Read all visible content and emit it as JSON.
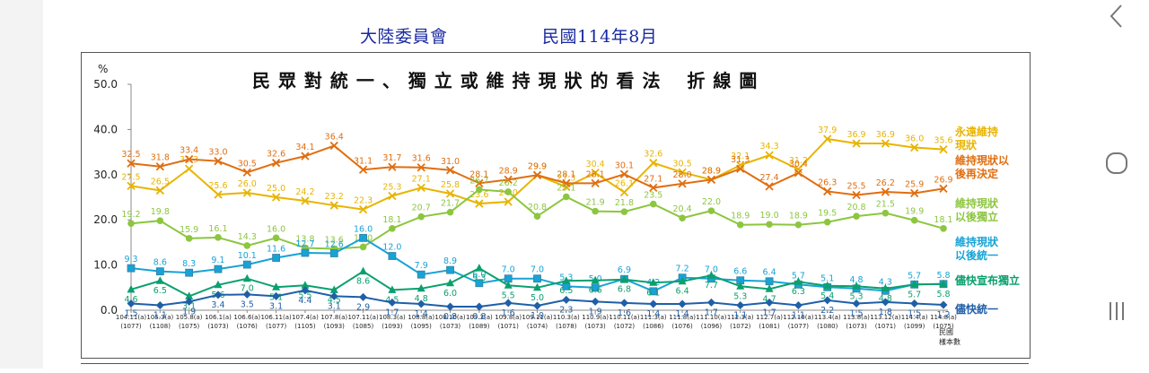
{
  "header": {
    "org_title": "大陸委員會",
    "date_title": "民國114年8月"
  },
  "nav": {
    "back_icon": "chevron-left-icon",
    "home_icon": "circle-home-icon",
    "recents_icon": "recents-icon"
  },
  "chart_data": {
    "type": "line",
    "title": "民 眾 對 統 一 、 獨 立 或 維 持 現 狀 的 看 法　 折 線 圖",
    "ylabel": "%",
    "ylim": [
      0,
      50
    ],
    "yticks": [
      "0.0",
      "10.0",
      "20.0",
      "30.0",
      "40.0",
      "50.0"
    ],
    "xlabel": "民國",
    "sample_label": "樣本數",
    "categories": [
      "104.11(a)",
      "105.3(a)",
      "105.8(a)",
      "106.1(a)",
      "106.6(a)",
      "106.11(a)",
      "107.4(a)",
      "107.8(a)",
      "107.11(a)",
      "108.3(a)",
      "108.8(a)",
      "108.10(a)",
      "109.3(a)",
      "109.8(a)",
      "109.11(a)",
      "110.3(a)",
      "110.9(a)",
      "110.11(a)",
      "111.3(a)",
      "111.8(a)",
      "111.10(a)",
      "112.3(a)",
      "112.7(a)",
      "112.10(a)",
      "113.4(a)",
      "113.8(a)",
      "113.12(a)",
      "114.4(a)",
      "114.8(a)"
    ],
    "samples": [
      "(1077)",
      "(1108)",
      "(1075)",
      "(1073)",
      "(1076)",
      "(1077)",
      "(1105)",
      "(1093)",
      "(1085)",
      "(1093)",
      "(1095)",
      "(1073)",
      "(1089)",
      "(1071)",
      "(1074)",
      "(1078)",
      "(1073)",
      "(1072)",
      "(1086)",
      "(1076)",
      "(1096)",
      "(1072)",
      "(1081)",
      "(1077)",
      "(1080)",
      "(1073)",
      "(1071)",
      "(1099)",
      "(1075)"
    ],
    "series": [
      {
        "name": "永遠維持現狀",
        "color": "#e8b400",
        "marker": "x",
        "label_pos": "above",
        "values": [
          27.5,
          26.5,
          31.3,
          25.6,
          26.0,
          25.0,
          24.2,
          23.2,
          22.3,
          25.3,
          27.1,
          25.8,
          23.6,
          24.0,
          29.9,
          27.3,
          30.4,
          26.1,
          32.6,
          30.5,
          28.9,
          32.1,
          34.3,
          31.2,
          37.9,
          36.9,
          36.9,
          36.0,
          35.6
        ]
      },
      {
        "name": "維持現狀以後再決定",
        "color": "#e06e10",
        "marker": "x",
        "label_pos": "above",
        "values": [
          32.5,
          31.8,
          33.4,
          33.0,
          30.5,
          32.6,
          34.1,
          36.4,
          31.1,
          31.7,
          31.6,
          31.0,
          28.1,
          28.9,
          29.9,
          28.1,
          28.1,
          30.1,
          27.1,
          28.0,
          28.9,
          31.3,
          27.4,
          30.4,
          26.3,
          25.5,
          26.2,
          25.9,
          26.9
        ]
      },
      {
        "name": "維持現狀以後獨立",
        "color": "#8cc63f",
        "marker": "circle",
        "label_pos": "above",
        "values": [
          19.2,
          19.8,
          15.9,
          16.1,
          14.3,
          16.0,
          13.8,
          13.6,
          14.0,
          18.1,
          20.7,
          21.7,
          26.7,
          26.2,
          20.8,
          25.1,
          21.9,
          21.8,
          23.5,
          20.4,
          22.0,
          18.9,
          19.0,
          18.9,
          19.5,
          20.8,
          21.5,
          19.9,
          18.1
        ]
      },
      {
        "name": "維持現狀以後統一",
        "color": "#17a3d6",
        "marker": "square",
        "label_pos": "above",
        "values": [
          9.3,
          8.6,
          8.3,
          9.1,
          10.1,
          11.6,
          12.7,
          12.6,
          16.0,
          12.0,
          7.9,
          8.9,
          6.0,
          7.0,
          7.0,
          5.3,
          5.0,
          6.9,
          4.2,
          7.2,
          7.0,
          6.6,
          6.4,
          5.7,
          5.1,
          4.8,
          4.3,
          5.7,
          5.8
        ]
      },
      {
        "name": "儘快宣布獨立",
        "color": "#0aa06e",
        "marker": "triangle",
        "label_pos": "below",
        "values": [
          4.6,
          6.5,
          3.1,
          5.6,
          7.0,
          5.1,
          5.5,
          4.5,
          8.6,
          4.5,
          4.8,
          6.0,
          9.3,
          5.5,
          5.0,
          6.5,
          6.6,
          6.8,
          6.1,
          6.4,
          7.7,
          5.3,
          4.7,
          6.3,
          5.4,
          5.3,
          4.8,
          5.7,
          5.8
        ]
      },
      {
        "name": "儘快統一",
        "color": "#1f5fa8",
        "marker": "diamond",
        "label_pos": "below",
        "values": [
          1.5,
          1.1,
          1.9,
          3.4,
          3.5,
          3.1,
          4.4,
          3.1,
          2.9,
          1.7,
          1.4,
          0.8,
          0.8,
          1.6,
          1.0,
          2.3,
          1.9,
          1.6,
          1.4,
          1.4,
          1.7,
          1.1,
          1.7,
          1.1,
          2.2,
          1.5,
          1.8,
          1.5,
          1.2
        ]
      }
    ],
    "legend": [
      {
        "lines": [
          "永遠維持",
          "現狀"
        ],
        "color": "#e8b400"
      },
      {
        "lines": [
          "維持現狀以",
          "後再決定"
        ],
        "color": "#e06e10"
      },
      {
        "lines": [
          "維持現狀",
          "以後獨立"
        ],
        "color": "#8cc63f"
      },
      {
        "lines": [
          "維持現狀",
          "以後統一"
        ],
        "color": "#17a3d6"
      },
      {
        "lines": [
          "儘快宣布獨立"
        ],
        "color": "#0aa06e"
      },
      {
        "lines": [
          "儘快統一"
        ],
        "color": "#1f5fa8"
      }
    ]
  }
}
